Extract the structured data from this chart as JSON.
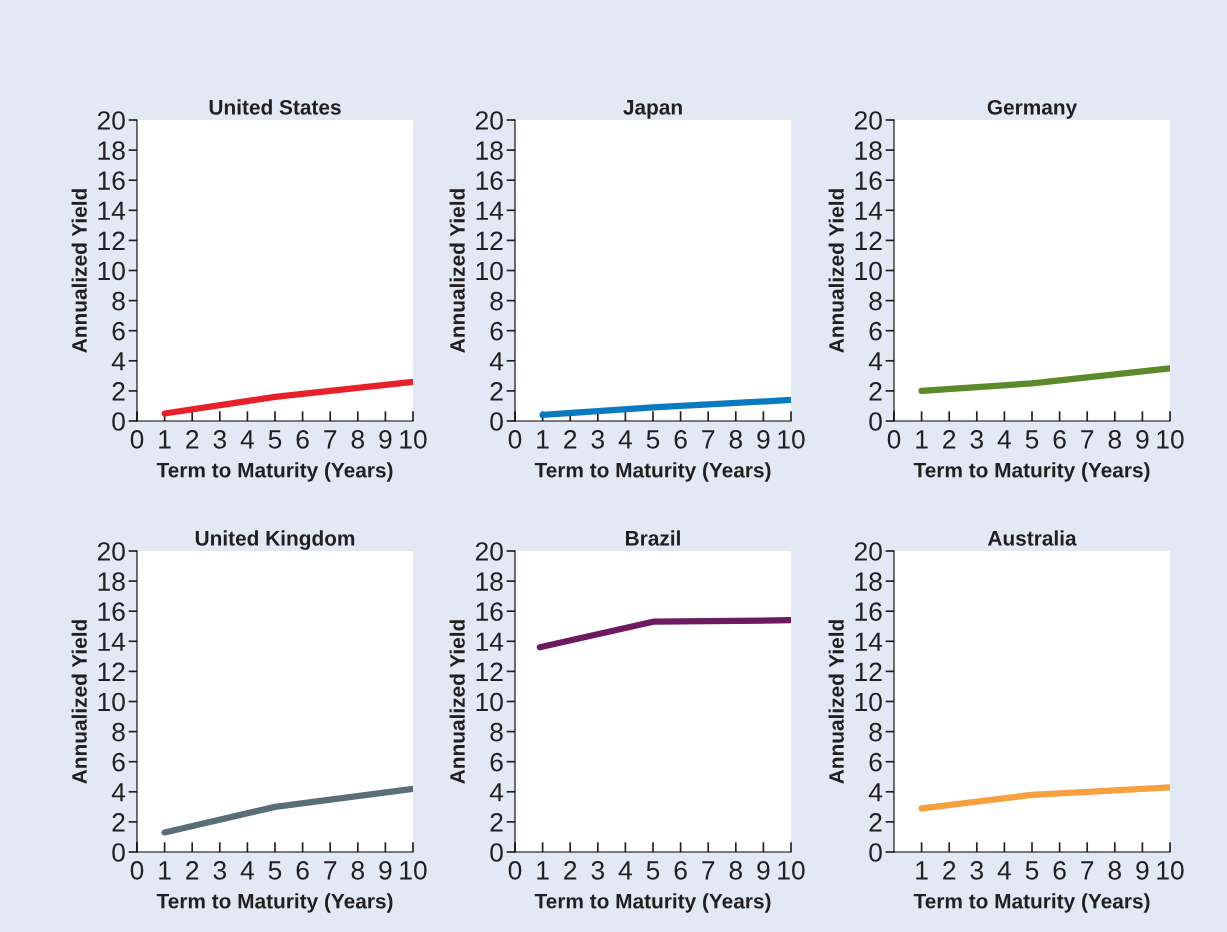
{
  "chart_data": [
    {
      "type": "line",
      "title": "United States",
      "xlabel": "Term to Maturity (Years)",
      "ylabel": "Annualized Yield",
      "xlim": [
        0,
        10
      ],
      "xticks": [
        0,
        1,
        2,
        3,
        4,
        5,
        6,
        7,
        8,
        9,
        10
      ],
      "ylim": [
        0,
        20
      ],
      "yticks": [
        0,
        2,
        4,
        6,
        8,
        10,
        12,
        14,
        16,
        18,
        20
      ],
      "grid": false,
      "marker": "none",
      "line_style": "solid",
      "series": [
        {
          "color": "#e8202a",
          "x": [
            1,
            5,
            10
          ],
          "values": [
            0.5,
            1.6,
            2.6
          ]
        }
      ]
    },
    {
      "type": "line",
      "title": "Japan",
      "xlabel": "Term to Maturity (Years)",
      "ylabel": "Annualized Yield",
      "xlim": [
        0,
        10
      ],
      "xticks": [
        0,
        1,
        2,
        3,
        4,
        5,
        6,
        7,
        8,
        9,
        10
      ],
      "ylim": [
        0,
        20
      ],
      "yticks": [
        0,
        2,
        4,
        6,
        8,
        10,
        12,
        14,
        16,
        18,
        20
      ],
      "grid": false,
      "marker": "none",
      "line_style": "solid",
      "series": [
        {
          "color": "#0a7abf",
          "x": [
            1,
            5,
            10
          ],
          "values": [
            0.4,
            0.9,
            1.4
          ]
        }
      ]
    },
    {
      "type": "line",
      "title": "Germany",
      "xlabel": "Term to Maturity (Years)",
      "ylabel": "Annualized Yield",
      "xlim": [
        0,
        10
      ],
      "xticks": [
        0,
        1,
        2,
        3,
        4,
        5,
        6,
        7,
        8,
        9,
        10
      ],
      "ylim": [
        0,
        20
      ],
      "yticks": [
        0,
        2,
        4,
        6,
        8,
        10,
        12,
        14,
        16,
        18,
        20
      ],
      "grid": false,
      "marker": "none",
      "line_style": "solid",
      "series": [
        {
          "color": "#5a8a2a",
          "x": [
            1,
            5,
            7,
            10
          ],
          "values": [
            2.0,
            2.5,
            2.9,
            3.5
          ]
        }
      ]
    },
    {
      "type": "line",
      "title": "United Kingdom",
      "xlabel": "Term to Maturity (Years)",
      "ylabel": "Annualized Yield",
      "xlim": [
        0,
        10
      ],
      "xticks": [
        0,
        1,
        2,
        3,
        4,
        5,
        6,
        7,
        8,
        9,
        10
      ],
      "ylim": [
        0,
        20
      ],
      "yticks": [
        0,
        2,
        4,
        6,
        8,
        10,
        12,
        14,
        16,
        18,
        20
      ],
      "grid": false,
      "marker": "none",
      "line_style": "solid",
      "series": [
        {
          "color": "#5a6e78",
          "x": [
            1,
            5,
            10
          ],
          "values": [
            1.3,
            3.0,
            4.2
          ]
        }
      ]
    },
    {
      "type": "line",
      "title": "Brazil",
      "xlabel": "Term to Maturity (Years)",
      "ylabel": "Annualized Yield",
      "xlim": [
        0,
        10
      ],
      "xticks": [
        0,
        1,
        2,
        3,
        4,
        5,
        6,
        7,
        8,
        9,
        10
      ],
      "ylim": [
        0,
        20
      ],
      "yticks": [
        0,
        2,
        4,
        6,
        8,
        10,
        12,
        14,
        16,
        18,
        20
      ],
      "grid": false,
      "marker": "none",
      "line_style": "solid",
      "series": [
        {
          "color": "#6e1a5e",
          "x": [
            0.9,
            5,
            10
          ],
          "values": [
            13.6,
            15.3,
            15.4
          ]
        }
      ]
    },
    {
      "type": "line",
      "title": "Australia",
      "xlabel": "Term to Maturity (Years)",
      "ylabel": "Annualized Yield",
      "xlim": [
        0,
        10
      ],
      "xticks": [
        1,
        2,
        3,
        4,
        5,
        6,
        7,
        8,
        9,
        10
      ],
      "ylim": [
        0,
        20
      ],
      "yticks": [
        0,
        2,
        4,
        6,
        8,
        10,
        12,
        14,
        16,
        18,
        20
      ],
      "grid": false,
      "marker": "none",
      "line_style": "solid",
      "series": [
        {
          "color": "#f6a040",
          "x": [
            1,
            5,
            10
          ],
          "values": [
            2.9,
            3.8,
            4.3
          ]
        }
      ]
    }
  ]
}
